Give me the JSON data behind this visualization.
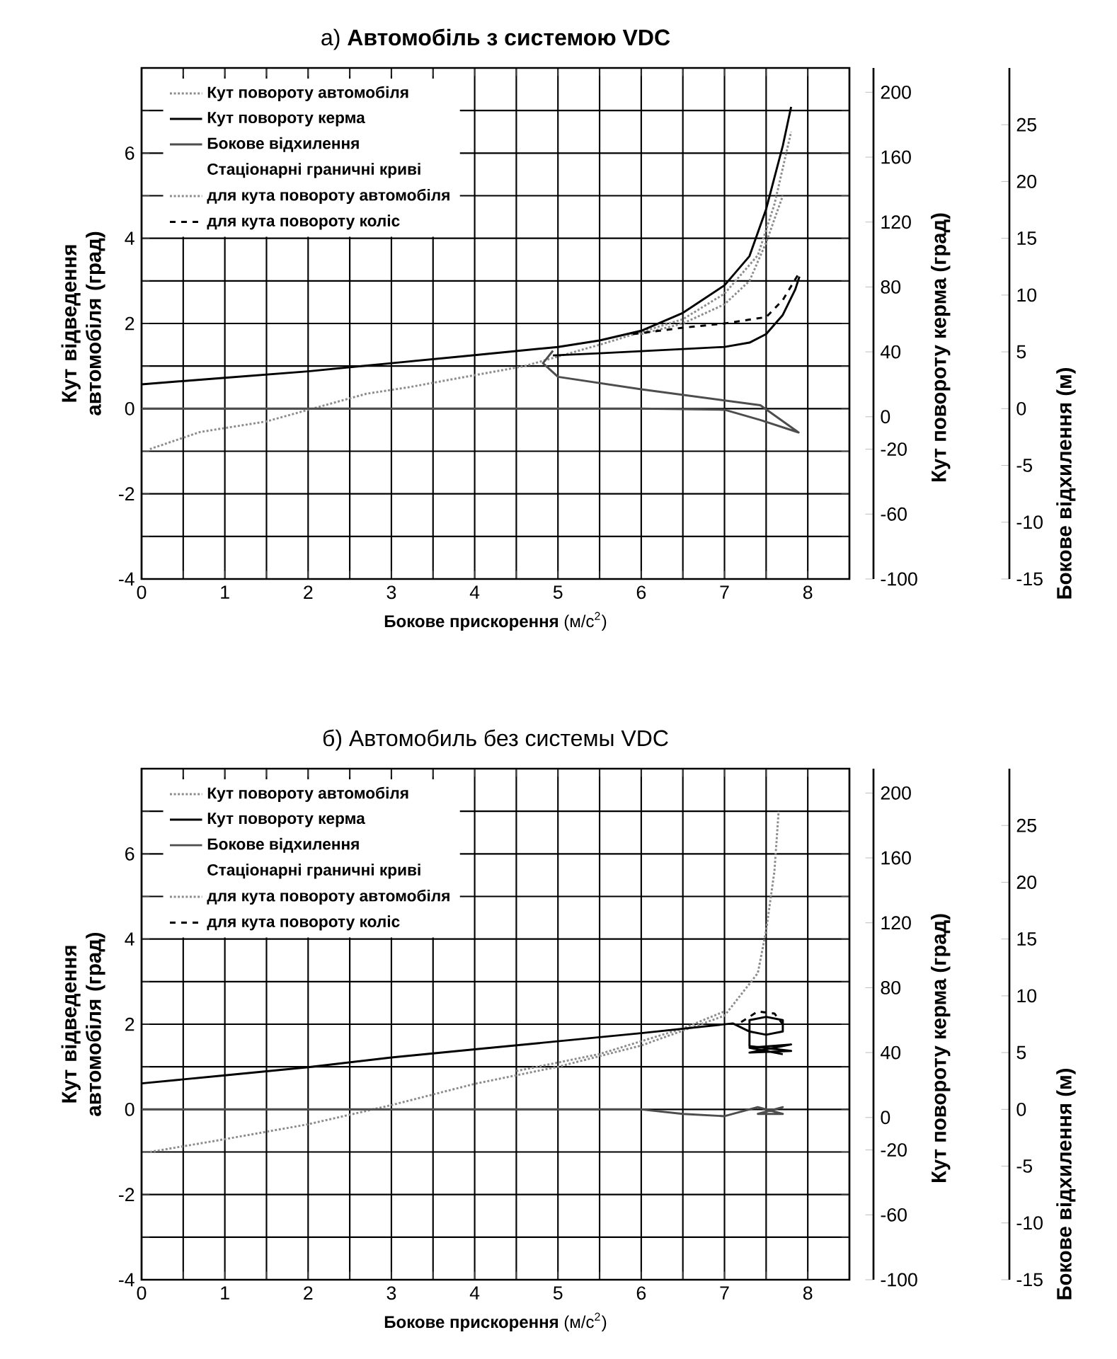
{
  "chart_data": [
    {
      "type": "line",
      "title": "а) **Автомобіль з системою VDC**",
      "xlabel": "**Бокове прискорення** (м/с$^{2}$)",
      "ylabel": "Кут відведення автомобіля (град)",
      "y2label": "Кут повороту керма (град)",
      "y3label": "Бокове відхилення (м)",
      "xlim": [
        0,
        8.5
      ],
      "ylim": [
        -4,
        8
      ],
      "y2lim": [
        -100,
        215
      ],
      "y3lim": [
        -15,
        30
      ],
      "xticks": [
        0,
        {
          "value": 0.5,
          "label": null
        },
        1,
        {
          "value": 1.5,
          "label": null
        },
        2,
        {
          "value": 2.5,
          "label": null
        },
        3,
        {
          "value": 3.5,
          "label": null
        },
        4,
        {
          "value": 4.5,
          "label": null
        },
        5,
        {
          "value": 5.5,
          "label": null
        },
        6,
        {
          "value": 6.5,
          "label": null
        },
        7,
        {
          "value": 7.5,
          "label": null
        },
        8
      ],
      "yticks": [
        -4,
        {
          "value": -3,
          "label": null
        },
        -2,
        {
          "value": -1,
          "label": null
        },
        0,
        {
          "value": 1,
          "label": null
        },
        2,
        {
          "value": 3,
          "label": null
        },
        4,
        {
          "value": 5,
          "label": null
        },
        6,
        {
          "value": 7,
          "label": null
        }
      ],
      "y2ticks": [
        200,
        160,
        120,
        80,
        40,
        0,
        -20,
        -60,
        -100
      ],
      "y3ticks": [
        25,
        20,
        15,
        10,
        5,
        0,
        -5,
        -10,
        -15
      ],
      "grid": true,
      "legend": "top left",
      "annotations": [
        "Стаціонарні граничні криві"
      ],
      "series": [
        {
          "name": "Кут повороту автомобіля",
          "color": "#8c8c8c",
          "line_style": "dotted",
          "x": [
            0.1,
            0.7,
            1.5,
            2.7,
            3.2,
            4.6,
            5.5,
            6.5,
            7,
            7.4,
            7.6,
            7.8
          ],
          "values": [
            -0.95,
            -0.55,
            -0.3,
            0.35,
            0.5,
            1.0,
            1.5,
            2.1,
            2.7,
            3.6,
            4.8,
            6.5
          ]
        },
        {
          "name": "Кут повороту керма",
          "color": "#000000",
          "line_style": "solid",
          "axis": "y2",
          "x": [
            0,
            1,
            2,
            3,
            4,
            5,
            5.5,
            6,
            6.5,
            7,
            7.3,
            7.5,
            7.7,
            7.8
          ],
          "values": [
            20,
            24,
            28,
            33,
            38,
            43,
            47,
            53,
            64,
            81,
            99,
            128,
            167,
            191
          ]
        },
        {
          "name": "Бокове відхилення",
          "color": "#4d4d4d",
          "line_style": "solid",
          "axis": "y3",
          "x": [
            0,
            1,
            2,
            3,
            4,
            5,
            6,
            7,
            7.43,
            7.89,
            7.43,
            6,
            5,
            4.82,
            4.94
          ],
          "values": [
            0,
            0,
            0,
            0,
            0,
            0,
            0,
            -0.1,
            -1.0,
            -2.1,
            0.3,
            1.7,
            2.8,
            4.0,
            5.1
          ]
        },
        {
          "name": "для кута повороту автомобіля",
          "color": "#8c8c8c",
          "line_style": "dotted",
          "x": [
            6.0,
            6.5,
            7,
            7.3,
            7.5,
            7.7
          ],
          "values": [
            1.75,
            2.0,
            2.45,
            3.0,
            3.9,
            5.0
          ]
        },
        {
          "name": "для кута повороту коліс",
          "color": "#000000",
          "line_style": "dashed",
          "x": [
            5.9,
            6.5,
            7,
            7.5,
            7.7,
            7.9
          ],
          "values": [
            1.75,
            1.9,
            2.0,
            2.15,
            2.55,
            3.2
          ]
        },
        {
          "color": "#000000",
          "line_style": "solid",
          "x": [
            4.94,
            5.5,
            6,
            6.5,
            7,
            7.3,
            7.5,
            7.7,
            7.85,
            7.9
          ],
          "values": [
            1.25,
            1.3,
            1.35,
            1.4,
            1.45,
            1.55,
            1.75,
            2.2,
            2.8,
            3.1
          ]
        }
      ]
    },
    {
      "type": "line",
      "title": "б) Автомобиль без системы VDC",
      "xlabel": "**Бокове прискорення** (м/с$^{2}$)",
      "ylabel": "Кут відведення автомобіля (град)",
      "y2label": "Кут повороту керма (град)",
      "y3label": "Бокове відхилення (м)",
      "xlim": [
        0,
        8.5
      ],
      "ylim": [
        -4,
        8
      ],
      "y2lim": [
        -100,
        215
      ],
      "y3lim": [
        -15,
        30
      ],
      "xticks": [
        0,
        {
          "value": 0.5,
          "label": null
        },
        1,
        {
          "value": 1.5,
          "label": null
        },
        2,
        {
          "value": 2.5,
          "label": null
        },
        3,
        {
          "value": 3.5,
          "label": null
        },
        4,
        {
          "value": 4.5,
          "label": null
        },
        5,
        {
          "value": 5.5,
          "label": null
        },
        6,
        {
          "value": 6.5,
          "label": null
        },
        7,
        {
          "value": 7.5,
          "label": null
        },
        8
      ],
      "yticks": [
        -4,
        {
          "value": -3,
          "label": null
        },
        -2,
        {
          "value": -1,
          "label": null
        },
        0,
        {
          "value": 1,
          "label": null
        },
        2,
        {
          "value": 3,
          "label": null
        },
        4,
        {
          "value": 5,
          "label": null
        },
        6,
        {
          "value": 7,
          "label": null
        }
      ],
      "y2ticks": [
        200,
        160,
        120,
        80,
        40,
        0,
        -20,
        -60,
        -100
      ],
      "y3ticks": [
        25,
        20,
        15,
        10,
        5,
        0,
        -5,
        -10,
        -15
      ],
      "grid": true,
      "legend": "top left",
      "annotations": [
        "Стаціонарні граничні криві"
      ],
      "series": [
        {
          "name": "Кут повороту автомобіля",
          "color": "#8c8c8c",
          "line_style": "dotted",
          "x": [
            0.1,
            1,
            2,
            3,
            4,
            5,
            6,
            7,
            7.4,
            7.5,
            7.6,
            7.65
          ],
          "values": [
            -1.0,
            -0.7,
            -0.35,
            0.1,
            0.6,
            1.0,
            1.5,
            2.2,
            3.2,
            4.2,
            5.6,
            7.0
          ]
        },
        {
          "name": "Кут повороту керма",
          "color": "#000000",
          "line_style": "solid",
          "axis": "y2",
          "x": [
            0,
            1,
            2,
            3,
            4,
            5,
            6,
            7.1,
            7.3,
            7.5,
            7.7,
            7.7,
            7.5,
            7.3,
            7.3,
            7.8,
            7.3,
            7.8,
            7.3,
            7.7
          ],
          "values": [
            21,
            26,
            31,
            37,
            42,
            47,
            52,
            58,
            53,
            51,
            53,
            60,
            62,
            60,
            44,
            41,
            40,
            45,
            43,
            39
          ]
        },
        {
          "name": "Бокове відхилення",
          "color": "#4d4d4d",
          "line_style": "solid",
          "axis": "y3",
          "x": [
            0,
            1,
            2,
            3,
            4,
            5,
            6,
            6.5,
            7,
            7.4,
            7.7,
            7.4,
            7.7,
            7.5
          ],
          "values": [
            0,
            0,
            0,
            0,
            0,
            0,
            0,
            -0.4,
            -0.6,
            0.2,
            -0.4,
            -0.4,
            0.2,
            -0.2
          ]
        },
        {
          "name": "для кута повороту автомобіля",
          "color": "#8c8c8c",
          "line_style": "dotted",
          "x": [
            4.5,
            5.5,
            6.5,
            7
          ],
          "values": [
            0.9,
            1.3,
            1.9,
            2.3
          ]
        },
        {
          "name": "для кута повороту коліс",
          "color": "#000000",
          "line_style": "dashed",
          "x": [
            7.2,
            7.4,
            7.6,
            7.7
          ],
          "values": [
            2.05,
            2.3,
            2.25,
            2.0
          ]
        }
      ]
    }
  ]
}
